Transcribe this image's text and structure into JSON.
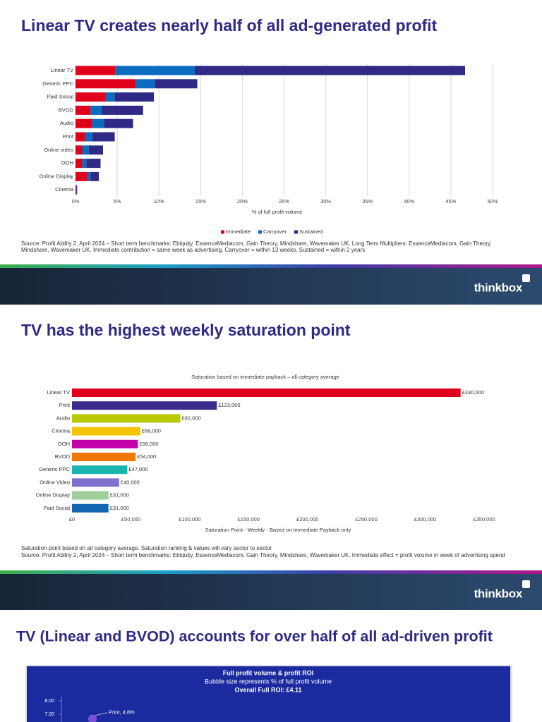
{
  "slides": [
    {
      "title": "Linear TV creates nearly half of all ad-generated profit",
      "notes": [
        "Source: Profit Ability 2, April 2024 – Short term benchmarks: Ebiquity, EssenceMediacom, Gain Theory, Mindshare, Wavemaker UK. Long Term Multipliers: EssenceMediacom, Gain Theory,",
        "Mindshare, Wavemaker UK. Immediate contribution = same week as advertising, Carryover = within 13 weeks, Sustained = within 2 years"
      ],
      "logo": "thinkbox"
    },
    {
      "title": "TV has the highest weekly saturation point",
      "notes": [
        "Saturation point based on all category average. Saturation ranking & values will vary sector to sector",
        "Source: Profit Ability 2, April 2024 – Short term benchmarks: Ebiquity, EssenceMediacom, Gain Theory, Mindshare, Wavemaker UK.  Immediate effect = profit volume in week of advertising spend"
      ],
      "logo": "thinkbox"
    },
    {
      "title": "TV (Linear and BVOD) accounts for over half of all ad-driven profit"
    }
  ],
  "chart_data": [
    {
      "type": "stacked-bar",
      "categories": [
        "Linear TV",
        "Generic PPC",
        "Paid Social",
        "BVOD",
        "Audio",
        "Print",
        "Online video",
        "OOH",
        "Online Display",
        "Cinema"
      ],
      "series": [
        {
          "name": "Immediate",
          "color": "#e0001b",
          "values": [
            4.8,
            7.2,
            3.6,
            1.8,
            2.0,
            1.1,
            0.8,
            0.8,
            1.4,
            0.1
          ]
        },
        {
          "name": "Carryover",
          "color": "#0b6cbf",
          "values": [
            9.5,
            2.3,
            1.1,
            1.3,
            1.4,
            0.9,
            0.8,
            0.5,
            0.4,
            0.0
          ]
        },
        {
          "name": "Sustained",
          "color": "#2e2a86",
          "values": [
            32.4,
            5.1,
            4.7,
            5.0,
            3.5,
            2.7,
            1.7,
            1.7,
            1.0,
            0.1
          ]
        }
      ],
      "x_label": "% of full profit volume",
      "xlim": [
        0,
        50
      ],
      "xticks": [
        {
          "value": 0,
          "label": "0%"
        },
        {
          "value": 5,
          "label": "5%"
        },
        {
          "value": 10,
          "label": "10%"
        },
        {
          "value": 15,
          "label": "15%"
        },
        {
          "value": 20,
          "label": "20%"
        },
        {
          "value": 25,
          "label": "25%"
        },
        {
          "value": 30,
          "label": "30%"
        },
        {
          "value": 35,
          "label": "35%"
        },
        {
          "value": 40,
          "label": "40%"
        },
        {
          "value": 45,
          "label": "45%"
        },
        {
          "value": 50,
          "label": "50%"
        }
      ],
      "grid": true,
      "legend": "bottom"
    },
    {
      "type": "bar",
      "title": "Saturation based on immediate payback – all category average",
      "categories": [
        "Linear TV",
        "Print",
        "Audio",
        "Cinema",
        "OOH",
        "BVOD",
        "Generic PPC",
        "Online Video",
        "Online Display",
        "Paid Social"
      ],
      "values": [
        330000,
        123000,
        92000,
        58000,
        56000,
        54000,
        47000,
        40000,
        31000,
        31000
      ],
      "value_labels": [
        "£330,000",
        "£123,000",
        "£92,000",
        "£58,000",
        "£56,000",
        "£54,000",
        "£47,000",
        "£40,000",
        "£31,000",
        "£31,000"
      ],
      "colors": [
        "#e0001b",
        "#3a2b8c",
        "#b8c900",
        "#f5c400",
        "#c200a8",
        "#f07800",
        "#19b4ad",
        "#7f70d0",
        "#9fd09c",
        "#1266b0"
      ],
      "x_label": "Saturation Point - Weekly - Based on Immediate Payback only",
      "xlim": [
        0,
        350000
      ],
      "xticks": [
        {
          "value": 0,
          "label": "£0"
        },
        {
          "value": 50000,
          "label": "£50,000"
        },
        {
          "value": 100000,
          "label": "£100,000"
        },
        {
          "value": 150000,
          "label": "£150,000"
        },
        {
          "value": 200000,
          "label": "£200,000"
        },
        {
          "value": 250000,
          "label": "£250,000"
        },
        {
          "value": 300000,
          "label": "£300,000"
        },
        {
          "value": 350000,
          "label": "£350,000"
        }
      ],
      "grid": false
    },
    {
      "type": "bubble",
      "title": "Full profit volume & profit ROI",
      "subtitle": "Bubble size represents % of full profit volume",
      "annotation": "Overall Full ROI: £4.11",
      "ylim": [
        6.4,
        8.2
      ],
      "yticks": [
        {
          "value": 8,
          "label": "8.00"
        },
        {
          "value": 7,
          "label": "7.00"
        }
      ],
      "points": [
        {
          "label": "Print, 4.8%",
          "y": 6.65,
          "size": 4.8,
          "color": "#7b4fd9"
        }
      ]
    }
  ]
}
